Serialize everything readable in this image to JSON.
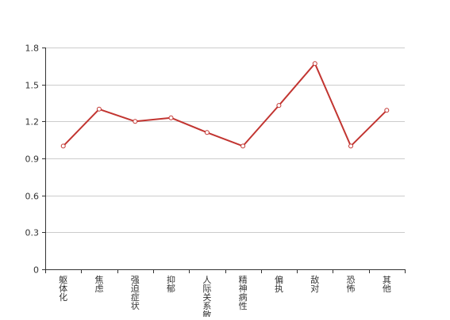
{
  "chart_data": {
    "type": "line",
    "title": "",
    "xlabel": "",
    "ylabel": "",
    "categories": [
      "躯体化",
      "焦虑",
      "强迫症状",
      "抑郁",
      "人际关系敏感",
      "精神病性",
      "偏执",
      "敌对",
      "恐怖",
      "其他"
    ],
    "series": [
      {
        "values": [
          1.0,
          1.3,
          1.2,
          1.23,
          1.11,
          1.0,
          1.33,
          1.67,
          1.0,
          1.29
        ]
      }
    ],
    "ylim": [
      0,
      1.8
    ],
    "yticks": [
      "0",
      "0.3",
      "0.6",
      "0.9",
      "1.2",
      "1.5",
      "1.8"
    ],
    "grid": true,
    "legend": "none",
    "colors": {
      "line": "#c23531",
      "point_fill": "#ffffff",
      "grid": "#cccccc",
      "axis": "#333333",
      "text": "#333333"
    }
  }
}
